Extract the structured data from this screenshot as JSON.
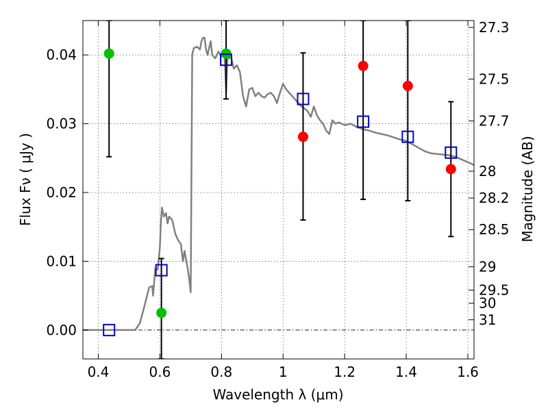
{
  "chart_data": {
    "type": "scatter",
    "xlabel": "Wavelength  λ (μm)",
    "ylabel": "Flux  Fν  ( μJy )",
    "y2label": "Magnitude (AB)",
    "xlim": [
      0.35,
      1.62
    ],
    "ylim": [
      -0.0042,
      0.045
    ],
    "x_ticks": [
      0.4,
      0.6,
      0.8,
      1.0,
      1.2,
      1.4,
      1.6
    ],
    "x_tick_labels": [
      "0.4",
      "0.6",
      "0.8",
      "1",
      "1.2",
      "1.4",
      "1.6"
    ],
    "y_ticks": [
      0.0,
      0.01,
      0.02,
      0.03,
      0.04
    ],
    "y_tick_labels": [
      "0.00",
      "0.01",
      "0.02",
      "0.03",
      "0.04"
    ],
    "y2_ticks": [
      {
        "label": "27.3",
        "flux": 0.044
      },
      {
        "label": "27.5",
        "flux": 0.0365
      },
      {
        "label": "27.7",
        "flux": 0.0304
      },
      {
        "label": "28",
        "flux": 0.0231
      },
      {
        "label": "28.2",
        "flux": 0.0192
      },
      {
        "label": "28.5",
        "flux": 0.0146
      },
      {
        "label": "29",
        "flux": 0.0092
      },
      {
        "label": "29.5",
        "flux": 0.0058
      },
      {
        "label": "30",
        "flux": 0.0039
      },
      {
        "label": "31",
        "flux": 0.0015
      }
    ],
    "grid": true,
    "series": [
      {
        "kind": "line",
        "color": "#808080",
        "x": [
          0.35,
          0.52,
          0.535,
          0.55,
          0.565,
          0.575,
          0.578,
          0.585,
          0.59,
          0.593,
          0.6,
          0.603,
          0.607,
          0.613,
          0.62,
          0.625,
          0.63,
          0.64,
          0.65,
          0.66,
          0.668,
          0.675,
          0.68,
          0.69,
          0.695,
          0.7,
          0.705,
          0.71,
          0.72,
          0.73,
          0.735,
          0.74,
          0.745,
          0.75,
          0.755,
          0.76,
          0.765,
          0.77,
          0.78,
          0.79,
          0.8,
          0.81,
          0.815,
          0.82,
          0.825,
          0.83,
          0.835,
          0.84,
          0.85,
          0.86,
          0.87,
          0.88,
          0.89,
          0.9,
          0.91,
          0.92,
          0.93,
          0.94,
          0.95,
          0.96,
          0.97,
          0.98,
          0.99,
          1.0,
          1.01,
          1.02,
          1.03,
          1.04,
          1.05,
          1.06,
          1.07,
          1.08,
          1.09,
          1.1,
          1.11,
          1.12,
          1.13,
          1.14,
          1.15,
          1.16,
          1.17,
          1.18,
          1.2,
          1.22,
          1.24,
          1.26,
          1.28,
          1.3,
          1.32,
          1.34,
          1.36,
          1.38,
          1.4,
          1.42,
          1.44,
          1.46,
          1.48,
          1.5,
          1.52,
          1.54,
          1.56,
          1.58,
          1.6,
          1.62
        ],
        "y": [
          0.0,
          0.0,
          0.001,
          0.0035,
          0.0062,
          0.0064,
          0.005,
          0.009,
          0.0088,
          0.0088,
          0.012,
          0.0155,
          0.0178,
          0.0165,
          0.017,
          0.0155,
          0.0165,
          0.016,
          0.014,
          0.013,
          0.0125,
          0.01,
          0.0115,
          0.009,
          0.0075,
          0.0055,
          0.04,
          0.041,
          0.0412,
          0.0408,
          0.042,
          0.0425,
          0.0425,
          0.0408,
          0.04,
          0.041,
          0.042,
          0.04,
          0.0395,
          0.0405,
          0.0398,
          0.04,
          0.0345,
          0.04,
          0.0395,
          0.0398,
          0.039,
          0.038,
          0.0385,
          0.0375,
          0.034,
          0.0325,
          0.035,
          0.0352,
          0.034,
          0.0345,
          0.034,
          0.0338,
          0.0343,
          0.0345,
          0.034,
          0.033,
          0.0345,
          0.0358,
          0.035,
          0.0345,
          0.034,
          0.0335,
          0.033,
          0.0325,
          0.0322,
          0.0318,
          0.031,
          0.0325,
          0.0312,
          0.0305,
          0.03,
          0.029,
          0.0285,
          0.0305,
          0.03,
          0.0302,
          0.0298,
          0.03,
          0.0295,
          0.0292,
          0.029,
          0.0287,
          0.0285,
          0.0283,
          0.028,
          0.0277,
          0.0275,
          0.027,
          0.0265,
          0.026,
          0.0257,
          0.0256,
          0.0255,
          0.0254,
          0.0252,
          0.0248,
          0.0244,
          0.024
        ]
      },
      {
        "kind": "markers",
        "marker": "circle",
        "color": "#00c000",
        "x": [
          0.435,
          0.605,
          0.815
        ],
        "y": [
          0.0402,
          0.0025,
          0.0402
        ]
      },
      {
        "kind": "markers",
        "marker": "circle",
        "color": "#ff0000",
        "x": [
          1.065,
          1.26,
          1.405,
          1.545
        ],
        "y": [
          0.0281,
          0.0384,
          0.0355,
          0.0234
        ]
      },
      {
        "kind": "markers",
        "marker": "square",
        "color": "#0000cc",
        "x": [
          0.435,
          0.605,
          0.815,
          1.065,
          1.26,
          1.405,
          1.545
        ],
        "y": [
          0.0,
          0.0087,
          0.0393,
          0.0336,
          0.0303,
          0.0281,
          0.0258
        ]
      },
      {
        "kind": "errorbars",
        "color": "#000000",
        "x": [
          0.435,
          0.605,
          0.815,
          1.065,
          1.26,
          1.405,
          1.545
        ],
        "center": [
          0.0402,
          0.0025,
          0.0402,
          0.0281,
          0.0384,
          0.0355,
          0.0234
        ],
        "low": [
          0.0252,
          -0.0042,
          0.0336,
          0.016,
          0.019,
          0.0188,
          0.0136
        ],
        "high": [
          0.045,
          0.0104,
          0.045,
          0.0403,
          0.045,
          0.045,
          0.0332
        ]
      }
    ]
  }
}
